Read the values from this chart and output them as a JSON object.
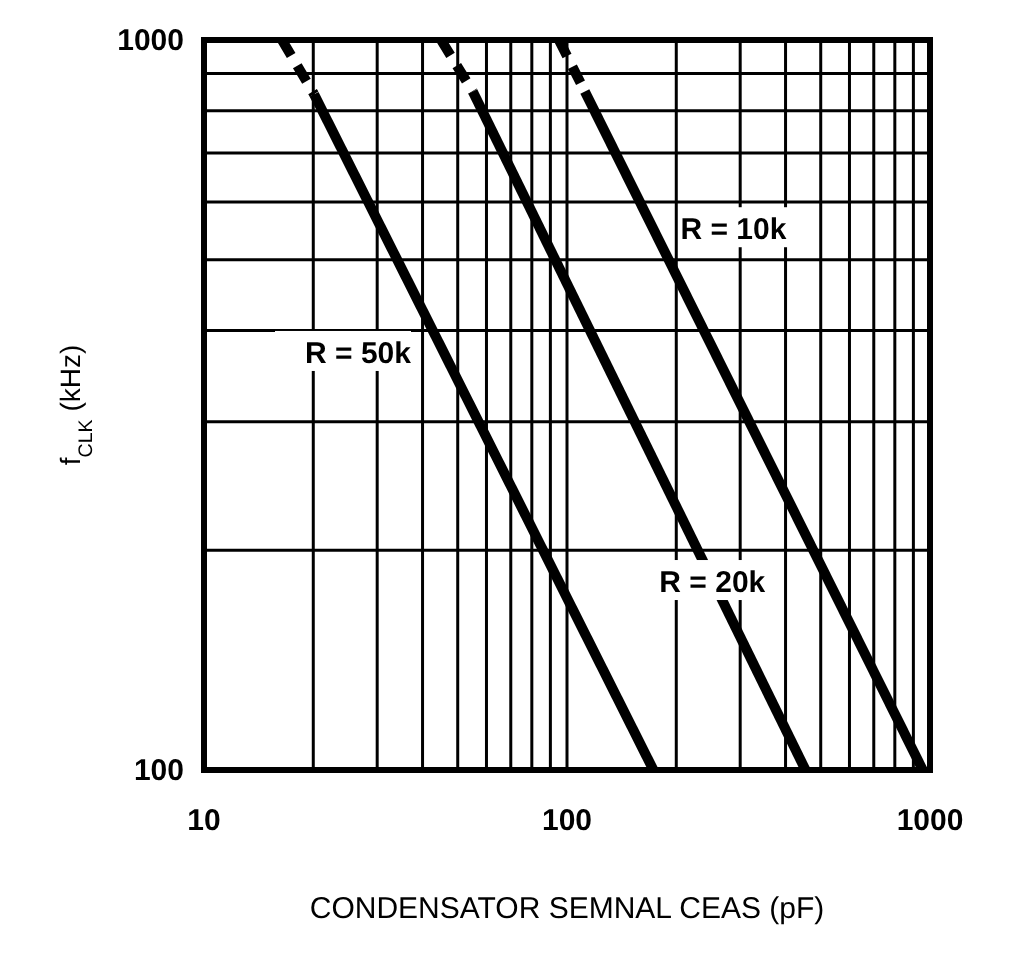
{
  "chart_data": {
    "type": "line",
    "xlabel": "CONDENSATOR SEMNAL CEAS (pF)",
    "ylabel": "f$_{CLK}$ (kHz)",
    "log": "xy",
    "grid": true,
    "xlim": [
      10,
      1000
    ],
    "ylim": [
      100,
      1000
    ],
    "xticks": [
      10,
      {
        "value": 20,
        "label": null
      },
      {
        "value": 30,
        "label": null
      },
      {
        "value": 40,
        "label": null
      },
      {
        "value": 50,
        "label": null
      },
      {
        "value": 60,
        "label": null
      },
      {
        "value": 70,
        "label": null
      },
      {
        "value": 80,
        "label": null
      },
      {
        "value": 90,
        "label": null
      },
      100,
      {
        "value": 200,
        "label": null
      },
      {
        "value": 300,
        "label": null
      },
      {
        "value": 400,
        "label": null
      },
      {
        "value": 500,
        "label": null
      },
      {
        "value": 600,
        "label": null
      },
      {
        "value": 700,
        "label": null
      },
      {
        "value": 800,
        "label": null
      },
      {
        "value": 900,
        "label": null
      },
      1000
    ],
    "yticks": [
      100,
      {
        "value": 200,
        "label": null
      },
      {
        "value": 300,
        "label": null
      },
      {
        "value": 400,
        "label": null
      },
      {
        "value": 500,
        "label": null
      },
      {
        "value": 600,
        "label": null
      },
      {
        "value": 700,
        "label": null
      },
      {
        "value": 800,
        "label": null
      },
      {
        "value": 900,
        "label": null
      },
      1000
    ],
    "series": [
      {
        "color": "#000000",
        "line_style": "dashed",
        "x": [
          16.4,
          20.1
        ],
        "values": [
          1000,
          843
        ]
      },
      {
        "name": "R = 50k",
        "color": "#000000",
        "line_style": "solid",
        "x": [
          20.1,
          173
        ],
        "values": [
          843,
          100
        ]
      },
      {
        "color": "#000000",
        "line_style": "dashed",
        "x": [
          45,
          55
        ],
        "values": [
          1000,
          850
        ]
      },
      {
        "name": "R = 20k",
        "color": "#000000",
        "line_style": "solid",
        "x": [
          55,
          454
        ],
        "values": [
          850,
          100
        ]
      },
      {
        "color": "#000000",
        "line_style": "dashed",
        "x": [
          95,
          112
        ],
        "values": [
          1000,
          850
        ]
      },
      {
        "name": "R = 10k",
        "color": "#000000",
        "line_style": "solid",
        "x": [
          112,
          955
        ],
        "values": [
          850,
          100
        ]
      }
    ]
  }
}
